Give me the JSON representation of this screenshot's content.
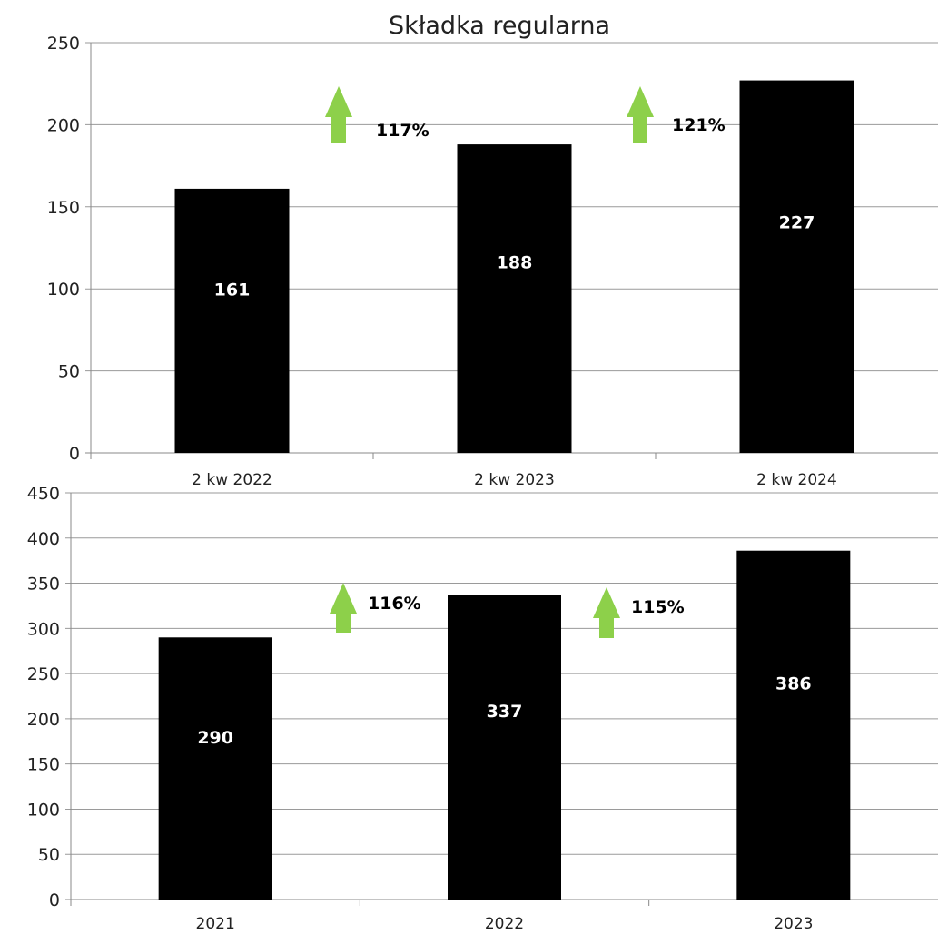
{
  "colors": {
    "bar": "#000000",
    "arrow": "#8dd04a",
    "grid": "#9a9a9a",
    "bar_label": "#ffffff"
  },
  "chart_data": [
    {
      "type": "bar",
      "title": "Składka regularna",
      "categories": [
        "2 kw 2022",
        "2 kw 2023",
        "2 kw 2024"
      ],
      "values": [
        161,
        188,
        227
      ],
      "data_labels": [
        "161",
        "188",
        "227"
      ],
      "ylim": [
        0,
        250
      ],
      "yticks": [
        0,
        50,
        100,
        150,
        200,
        250
      ],
      "grid": true,
      "growth_annotations": [
        {
          "between": [
            "2 kw 2022",
            "2 kw 2023"
          ],
          "label": "117%",
          "icon": "up-arrow-icon"
        },
        {
          "between": [
            "2 kw 2023",
            "2 kw 2024"
          ],
          "label": "121%",
          "icon": "up-arrow-icon"
        }
      ]
    },
    {
      "type": "bar",
      "title": "",
      "categories": [
        "2021",
        "2022",
        "2023"
      ],
      "values": [
        290,
        337,
        386
      ],
      "data_labels": [
        "290",
        "337",
        "386"
      ],
      "ylim": [
        0,
        450
      ],
      "yticks": [
        0,
        50,
        100,
        150,
        200,
        250,
        300,
        350,
        400,
        450
      ],
      "grid": true,
      "growth_annotations": [
        {
          "between": [
            "2021",
            "2022"
          ],
          "label": "116%",
          "icon": "up-arrow-icon"
        },
        {
          "between": [
            "2022",
            "2023"
          ],
          "label": "115%",
          "icon": "up-arrow-icon"
        }
      ]
    }
  ]
}
